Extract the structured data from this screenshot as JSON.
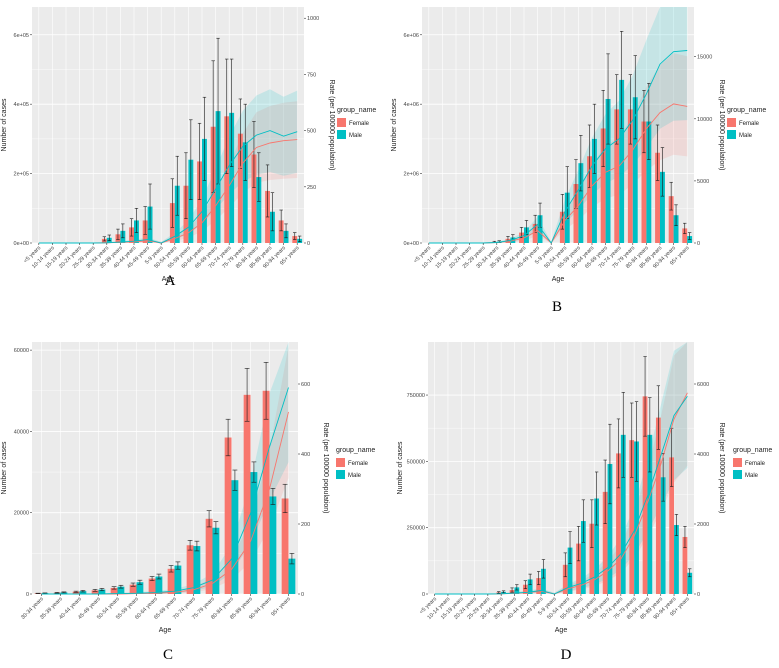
{
  "colors": {
    "female": "#F8766D",
    "male": "#00BFC4",
    "panel_bg": "#EBEBEB",
    "grid": "#FFFFFF",
    "ribbon": "#C8C8C8"
  },
  "chart_data": [
    {
      "panel_label": "A",
      "type": "bar",
      "xlabel": "Age",
      "ylabel": "Number of cases",
      "ylabel2": "Rate (per 100000 population)",
      "legend_title": "group_name",
      "legend_position": "right",
      "grid": true,
      "categories": [
        "<5 years",
        "10-14 years",
        "15-19 years",
        "20-24 years",
        "25-29 years",
        "30-34 years",
        "35-39 years",
        "40-44 years",
        "45-49 years",
        "5-9 years",
        "50-54 years",
        "55-59 years",
        "60-64 years",
        "65-69 years",
        "70-74 years",
        "75-79 years",
        "80-84 years",
        "85-89 years",
        "90-94 years",
        "95+ years"
      ],
      "ylim": [
        0,
        680000
      ],
      "y_ticks": [
        0,
        200000,
        400000,
        600000
      ],
      "y_tick_labels": [
        "0e+00",
        "2e+05",
        "4e+05",
        "6e+05"
      ],
      "y2lim": [
        0,
        1050
      ],
      "y2_ticks": [
        0,
        250,
        500,
        750,
        1000
      ],
      "y2_tick_labels": [
        "0",
        "250",
        "500",
        "750",
        "1000"
      ],
      "series": [
        {
          "name": "Female",
          "values": [
            0,
            0,
            0,
            0,
            0,
            12000,
            25000,
            45000,
            65000,
            0,
            115000,
            165000,
            235000,
            335000,
            365000,
            315000,
            255000,
            150000,
            65000,
            20000
          ],
          "err": [
            0,
            0,
            0,
            0,
            0,
            6000,
            15000,
            25000,
            40000,
            0,
            70000,
            95000,
            110000,
            190000,
            165000,
            100000,
            95000,
            75000,
            30000,
            10000
          ],
          "rate": [
            0,
            0,
            0,
            0,
            0,
            1,
            3,
            5,
            10,
            0,
            20,
            45,
            90,
            165,
            255,
            355,
            425,
            445,
            455,
            460
          ]
        },
        {
          "name": "Male",
          "values": [
            0,
            0,
            0,
            0,
            0,
            15000,
            35000,
            65000,
            105000,
            0,
            165000,
            240000,
            300000,
            380000,
            375000,
            290000,
            190000,
            90000,
            35000,
            12000
          ],
          "err": [
            0,
            0,
            0,
            0,
            0,
            8000,
            20000,
            35000,
            65000,
            0,
            85000,
            115000,
            120000,
            210000,
            155000,
            110000,
            70000,
            55000,
            20000,
            8000
          ],
          "rate": [
            0,
            0,
            0,
            0,
            0,
            1,
            4,
            8,
            15,
            0,
            30,
            70,
            140,
            240,
            345,
            430,
            480,
            500,
            475,
            495
          ]
        }
      ]
    },
    {
      "panel_label": "B",
      "type": "bar",
      "xlabel": "Age",
      "ylabel": "Number of cases",
      "ylabel2": "Rate (per 100000 population)",
      "legend_title": "group_name",
      "legend_position": "right",
      "grid": true,
      "categories": [
        "<5 years",
        "10-14 years",
        "15-19 years",
        "20-24 years",
        "25-29 years",
        "30-34 years",
        "35-39 years",
        "40-44 years",
        "45-49 years",
        "5-9 years",
        "50-54 years",
        "55-59 years",
        "60-64 years",
        "65-69 years",
        "70-74 years",
        "75-79 years",
        "80-84 years",
        "85-89 years",
        "90-94 years",
        "95+ years"
      ],
      "ylim": [
        0,
        6800000
      ],
      "y_ticks": [
        0,
        2000000,
        4000000,
        6000000
      ],
      "y_tick_labels": [
        "0e+00",
        "2e+06",
        "4e+06",
        "6e+06"
      ],
      "y2lim": [
        0,
        19000
      ],
      "y2_ticks": [
        0,
        5000,
        10000,
        15000
      ],
      "y2_tick_labels": [
        "0",
        "5000",
        "10000",
        "15000"
      ],
      "series": [
        {
          "name": "Female",
          "values": [
            0,
            0,
            0,
            0,
            0,
            30000,
            120000,
            300000,
            550000,
            0,
            900000,
            1700000,
            2500000,
            3300000,
            3850000,
            3850000,
            3500000,
            2600000,
            1350000,
            420000
          ],
          "err": [
            0,
            0,
            0,
            0,
            0,
            20000,
            70000,
            150000,
            250000,
            0,
            500000,
            700000,
            900000,
            1100000,
            1000000,
            1000000,
            900000,
            800000,
            400000,
            150000
          ],
          "rate": [
            0,
            0,
            0,
            0,
            0,
            30,
            150,
            400,
            1000,
            0,
            1800,
            3000,
            4600,
            5700,
            6200,
            7500,
            9200,
            10500,
            11200,
            11000
          ]
        },
        {
          "name": "Male",
          "values": [
            0,
            0,
            0,
            0,
            0,
            40000,
            160000,
            450000,
            800000,
            0,
            1450000,
            2300000,
            3000000,
            4150000,
            4700000,
            4200000,
            3500000,
            2050000,
            800000,
            200000
          ],
          "err": [
            0,
            0,
            0,
            0,
            0,
            25000,
            80000,
            200000,
            350000,
            0,
            750000,
            800000,
            1000000,
            1300000,
            1400000,
            1200000,
            1100000,
            700000,
            300000,
            100000
          ],
          "rate": [
            0,
            0,
            0,
            0,
            0,
            40,
            200,
            600,
            1500,
            0,
            2500,
            4300,
            6200,
            7600,
            8400,
            9900,
            12000,
            14400,
            15400,
            15500
          ]
        }
      ]
    },
    {
      "panel_label": "C",
      "type": "bar",
      "xlabel": "Age",
      "ylabel": "Number of cases",
      "ylabel2": "Rate (per 100000 population)",
      "legend_title": "group_name",
      "legend_position": "right",
      "grid": true,
      "categories": [
        "30-34 years",
        "35-39 years",
        "40-44 years",
        "45-49 years",
        "50-54 years",
        "55-59 years",
        "60-64 years",
        "65-69 years",
        "70-74 years",
        "75-79 years",
        "80-84 years",
        "85-89 years",
        "90-94 years",
        "95+ years"
      ],
      "ylim": [
        0,
        62000
      ],
      "y_ticks": [
        0,
        20000,
        40000,
        60000
      ],
      "y_tick_labels": [
        "0",
        "20000",
        "40000",
        "60000"
      ],
      "y2lim": [
        0,
        720
      ],
      "y2_ticks": [
        0,
        200,
        400,
        600
      ],
      "y2_tick_labels": [
        "0",
        "200",
        "400",
        "600"
      ],
      "series": [
        {
          "name": "Female",
          "values": [
            150,
            300,
            550,
            900,
            1500,
            2300,
            3800,
            6200,
            12000,
            18500,
            38500,
            49000,
            50000,
            23500
          ],
          "err": [
            50,
            100,
            150,
            250,
            300,
            400,
            500,
            800,
            1200,
            2000,
            4500,
            6500,
            7000,
            3500
          ],
          "rate": [
            0,
            0,
            0,
            0,
            0,
            1,
            2,
            5,
            12,
            30,
            70,
            150,
            300,
            520
          ]
        },
        {
          "name": "Male",
          "values": [
            200,
            400,
            700,
            1100,
            1800,
            2900,
            4300,
            7000,
            11800,
            16300,
            28000,
            30000,
            24000,
            8700
          ],
          "err": [
            70,
            120,
            200,
            300,
            350,
            500,
            600,
            900,
            1200,
            1500,
            2500,
            2500,
            2000,
            1300
          ],
          "rate": [
            0,
            0,
            0,
            0,
            1,
            2,
            4,
            8,
            18,
            40,
            100,
            230,
            420,
            590
          ]
        }
      ]
    },
    {
      "panel_label": "D",
      "type": "bar",
      "xlabel": "Age",
      "ylabel": "Number of cases",
      "ylabel2": "Rate (per 100000 population)",
      "legend_title": "group_name",
      "legend_position": "right",
      "grid": true,
      "categories": [
        "<5 years",
        "10-14 years",
        "15-19 years",
        "20-24 years",
        "25-29 years",
        "30-34 years",
        "35-39 years",
        "40-44 years",
        "45-49 years",
        "5-9 years",
        "50-54 years",
        "55-59 years",
        "60-64 years",
        "65-69 years",
        "70-74 years",
        "75-79 years",
        "80-84 years",
        "85-89 years",
        "90-94 years",
        "95+ years"
      ],
      "ylim": [
        0,
        950000
      ],
      "y_ticks": [
        0,
        250000,
        500000,
        750000
      ],
      "y_tick_labels": [
        "0",
        "250000",
        "500000",
        "750000"
      ],
      "y2lim": [
        0,
        7200
      ],
      "y2_ticks": [
        0,
        2000,
        4000,
        6000
      ],
      "y2_tick_labels": [
        "0",
        "2000",
        "4000",
        "6000"
      ],
      "series": [
        {
          "name": "Female",
          "values": [
            0,
            0,
            0,
            0,
            0,
            6000,
            15000,
            35000,
            60000,
            0,
            110000,
            190000,
            265000,
            385000,
            530000,
            580000,
            745000,
            665000,
            515000,
            215000
          ],
          "err": [
            0,
            0,
            0,
            0,
            0,
            3000,
            8000,
            15000,
            25000,
            0,
            45000,
            65000,
            90000,
            120000,
            130000,
            140000,
            150000,
            120000,
            110000,
            40000
          ],
          "rate": [
            0,
            0,
            0,
            0,
            0,
            5,
            20,
            40,
            80,
            0,
            150,
            250,
            400,
            650,
            1000,
            1650,
            2600,
            3700,
            5000,
            5750
          ]
        },
        {
          "name": "Male",
          "values": [
            0,
            0,
            0,
            0,
            0,
            8000,
            25000,
            55000,
            95000,
            0,
            175000,
            275000,
            360000,
            490000,
            600000,
            575000,
            600000,
            440000,
            260000,
            80000
          ],
          "err": [
            0,
            0,
            0,
            0,
            0,
            4000,
            10000,
            20000,
            35000,
            0,
            60000,
            80000,
            100000,
            150000,
            160000,
            150000,
            140000,
            90000,
            40000,
            15000
          ],
          "rate": [
            0,
            0,
            0,
            0,
            0,
            6,
            25,
            50,
            100,
            0,
            180,
            300,
            480,
            750,
            1150,
            1800,
            2800,
            3950,
            5100,
            5650
          ]
        }
      ]
    }
  ]
}
